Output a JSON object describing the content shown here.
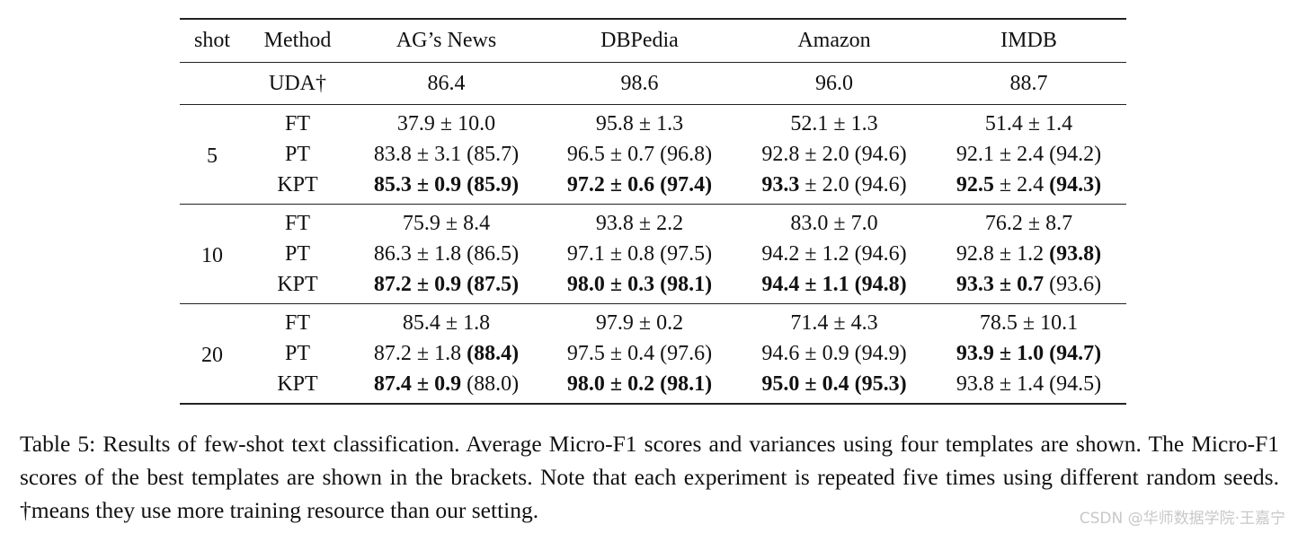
{
  "table": {
    "header": [
      "shot",
      "Method",
      "AG’s News",
      "DBPedia",
      "Amazon",
      "IMDB"
    ],
    "baseline": {
      "method": "UDA†",
      "cells": [
        [
          {
            "t": "86.4"
          }
        ],
        [
          {
            "t": "98.6"
          }
        ],
        [
          {
            "t": "96.0"
          }
        ],
        [
          {
            "t": "88.7"
          }
        ]
      ]
    },
    "groups": [
      {
        "shot": "5",
        "rows": [
          {
            "method": "FT",
            "cells": [
              [
                {
                  "t": "37.9 ± 10.0"
                }
              ],
              [
                {
                  "t": "95.8 ± 1.3"
                }
              ],
              [
                {
                  "t": "52.1 ± 1.3"
                }
              ],
              [
                {
                  "t": "51.4 ± 1.4"
                }
              ]
            ]
          },
          {
            "method": "PT",
            "cells": [
              [
                {
                  "t": "83.8 ± 3.1 (85.7)"
                }
              ],
              [
                {
                  "t": "96.5 ± 0.7 (96.8)"
                }
              ],
              [
                {
                  "t": "92.8 ± 2.0 (94.6)"
                }
              ],
              [
                {
                  "t": "92.1 ± 2.4 (94.2)"
                }
              ]
            ]
          },
          {
            "method": "KPT",
            "cells": [
              [
                {
                  "t": "85.3 ± 0.9 (85.9)",
                  "b": true
                }
              ],
              [
                {
                  "t": "97.2 ± 0.6 (97.4)",
                  "b": true
                }
              ],
              [
                {
                  "t": "93.3",
                  "b": true
                },
                {
                  "t": " ± 2.0 (94.6)"
                }
              ],
              [
                {
                  "t": "92.5",
                  "b": true
                },
                {
                  "t": " ± 2.4 "
                },
                {
                  "t": "(94.3)",
                  "b": true
                }
              ]
            ]
          }
        ]
      },
      {
        "shot": "10",
        "rows": [
          {
            "method": "FT",
            "cells": [
              [
                {
                  "t": "75.9 ± 8.4"
                }
              ],
              [
                {
                  "t": "93.8 ± 2.2"
                }
              ],
              [
                {
                  "t": "83.0 ± 7.0"
                }
              ],
              [
                {
                  "t": "76.2 ± 8.7"
                }
              ]
            ]
          },
          {
            "method": "PT",
            "cells": [
              [
                {
                  "t": "86.3 ± 1.8 (86.5)"
                }
              ],
              [
                {
                  "t": "97.1 ± 0.8 (97.5)"
                }
              ],
              [
                {
                  "t": "94.2 ± 1.2 (94.6)"
                }
              ],
              [
                {
                  "t": "92.8 ± 1.2 "
                },
                {
                  "t": "(93.8)",
                  "b": true
                }
              ]
            ]
          },
          {
            "method": "KPT",
            "cells": [
              [
                {
                  "t": "87.2 ± 0.9 (87.5)",
                  "b": true
                }
              ],
              [
                {
                  "t": "98.0 ± 0.3 (98.1)",
                  "b": true
                }
              ],
              [
                {
                  "t": "94.4 ± 1.1 (94.8)",
                  "b": true
                }
              ],
              [
                {
                  "t": "93.3 ± 0.7",
                  "b": true
                },
                {
                  "t": " (93.6)"
                }
              ]
            ]
          }
        ]
      },
      {
        "shot": "20",
        "rows": [
          {
            "method": "FT",
            "cells": [
              [
                {
                  "t": "85.4 ± 1.8"
                }
              ],
              [
                {
                  "t": "97.9 ± 0.2"
                }
              ],
              [
                {
                  "t": "71.4 ± 4.3"
                }
              ],
              [
                {
                  "t": "78.5 ± 10.1"
                }
              ]
            ]
          },
          {
            "method": "PT",
            "cells": [
              [
                {
                  "t": "87.2 ± 1.8 "
                },
                {
                  "t": "(88.4)",
                  "b": true
                }
              ],
              [
                {
                  "t": "97.5 ± 0.4 (97.6)"
                }
              ],
              [
                {
                  "t": "94.6 ± 0.9 (94.9)"
                }
              ],
              [
                {
                  "t": "93.9 ± 1.0 (94.7)",
                  "b": true
                }
              ]
            ]
          },
          {
            "method": "KPT",
            "cells": [
              [
                {
                  "t": "87.4 ± 0.9",
                  "b": true
                },
                {
                  "t": " (88.0)"
                }
              ],
              [
                {
                  "t": "98.0 ± 0.2 (98.1)",
                  "b": true
                }
              ],
              [
                {
                  "t": "95.0 ± 0.4 (95.3)",
                  "b": true
                }
              ],
              [
                {
                  "t": "93.8 ± 1.4 (94.5)"
                }
              ]
            ]
          }
        ]
      }
    ]
  },
  "caption": "Table 5: Results of few-shot text classification. Average Micro-F1 scores and variances using four templates are shown. The Micro-F1 scores of the best templates are shown in the brackets. Note that each experiment is repeated five times using different random seeds. †means they use more training resource than our setting.",
  "watermark": "CSDN @华师数据学院·王嘉宁"
}
